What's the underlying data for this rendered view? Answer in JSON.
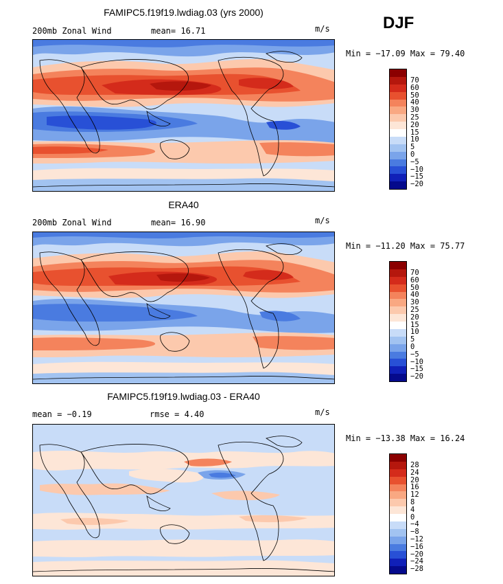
{
  "season": "DJF",
  "panels": [
    {
      "title": "FAMIPC5.f19f19.lwdiag.03 (yrs 2000)",
      "left_label": "200mb Zonal Wind",
      "stat1": "mean=  16.71",
      "stat2": "",
      "units": "m/s",
      "minmax": "Min = −17.09 Max =  79.40",
      "colorbar_labels": [
        "70",
        "60",
        "50",
        "40",
        "30",
        "25",
        "20",
        "15",
        "10",
        "5",
        "0",
        "−5",
        "−10",
        "−15",
        "−20"
      ],
      "colors": [
        "#8b0000",
        "#b5170d",
        "#d42b1b",
        "#e8512f",
        "#f4835c",
        "#f9a882",
        "#fcc9ad",
        "#fde6d7",
        "#ffffff",
        "#c8dcf8",
        "#a2c3f1",
        "#7aa4ea",
        "#4a7be0",
        "#2850d6",
        "#1020b8",
        "#050a8c"
      ]
    },
    {
      "title": "ERA40",
      "left_label": "200mb Zonal Wind",
      "stat1": "mean=  16.90",
      "stat2": "",
      "units": "m/s",
      "minmax": "Min = −11.20 Max =  75.77",
      "colorbar_labels": [
        "70",
        "60",
        "50",
        "40",
        "30",
        "25",
        "20",
        "15",
        "10",
        "5",
        "0",
        "−5",
        "−10",
        "−15",
        "−20"
      ],
      "colors": [
        "#8b0000",
        "#b5170d",
        "#d42b1b",
        "#e8512f",
        "#f4835c",
        "#f9a882",
        "#fcc9ad",
        "#fde6d7",
        "#ffffff",
        "#c8dcf8",
        "#a2c3f1",
        "#7aa4ea",
        "#4a7be0",
        "#2850d6",
        "#1020b8",
        "#050a8c"
      ]
    },
    {
      "title": "FAMIPC5.f19f19.lwdiag.03 - ERA40",
      "left_label": "mean =  −0.19",
      "stat1": "rmse =   4.40",
      "stat2": "",
      "units": "m/s",
      "minmax": "Min = −13.38 Max =  16.24",
      "colorbar_labels": [
        "28",
        "24",
        "20",
        "16",
        "12",
        "8",
        "4",
        "0",
        "−4",
        "−8",
        "−12",
        "−16",
        "−20",
        "−24",
        "−28"
      ],
      "colors": [
        "#8b0000",
        "#b5170d",
        "#d42b1b",
        "#e8512f",
        "#f4835c",
        "#f9a882",
        "#fcc9ad",
        "#fde6d7",
        "#ffffff",
        "#c8dcf8",
        "#a2c3f1",
        "#7aa4ea",
        "#4a7be0",
        "#2850d6",
        "#1020b8",
        "#050a8c"
      ]
    }
  ]
}
